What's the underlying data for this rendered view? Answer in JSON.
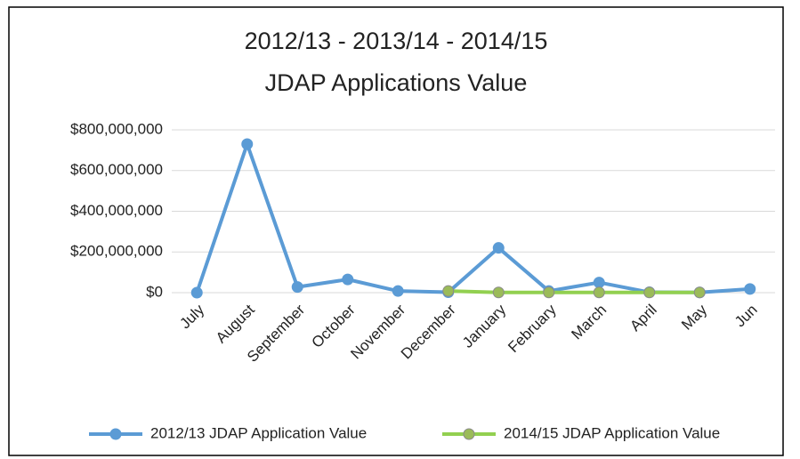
{
  "chart_data": {
    "type": "line",
    "title": [
      "2012/13 - 2013/14 - 2014/15",
      "JDAP Applications Value"
    ],
    "categories": [
      "July",
      "August",
      "September",
      "October",
      "November",
      "December",
      "January",
      "February",
      "March",
      "April",
      "May",
      "Jun"
    ],
    "series": [
      {
        "name": "2012/13 JDAP Application Value",
        "color": "#5b9bd5",
        "marker_color": "#5b9bd5",
        "values": [
          0,
          730000000,
          28000000,
          65000000,
          8000000,
          2000000,
          220000000,
          8000000,
          50000000,
          2000000,
          1000000,
          18000000
        ]
      },
      {
        "name": "2014/15 JDAP Application Value",
        "color": "#92d050",
        "marker_color": "#9bbb59",
        "values": [
          null,
          null,
          null,
          null,
          null,
          8000000,
          1000000,
          1000000,
          1000000,
          1000000,
          1000000,
          null
        ]
      }
    ],
    "ylim": [
      0,
      800000000
    ],
    "yticks": [
      {
        "value": 0,
        "label": "$0"
      },
      {
        "value": 200000000,
        "label": "$200,000,000"
      },
      {
        "value": 400000000,
        "label": "$400,000,000"
      },
      {
        "value": 600000000,
        "label": "$600,000,000"
      },
      {
        "value": 800000000,
        "label": "$800,000,000"
      }
    ],
    "grid": true,
    "legend": "bottom"
  }
}
